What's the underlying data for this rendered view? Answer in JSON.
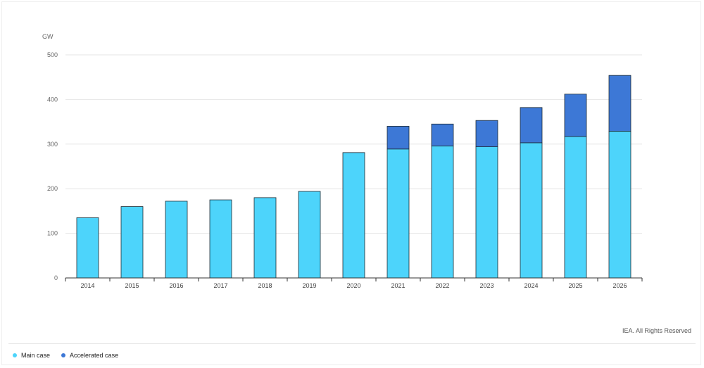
{
  "credit": "IEA. All Rights Reserved",
  "colors": {
    "main": "#4dd4fb",
    "accelerated": "#3d78d6",
    "grid": "#e6e6e6",
    "axis": "#333333"
  },
  "chart_data": {
    "type": "bar",
    "stacked": true,
    "unit_label": "GW",
    "ylim": [
      0,
      500
    ],
    "yticks": [
      0,
      100,
      200,
      300,
      400,
      500
    ],
    "categories": [
      "2014",
      "2015",
      "2016",
      "2017",
      "2018",
      "2019",
      "2020",
      "2021",
      "2022",
      "2023",
      "2024",
      "2025",
      "2026"
    ],
    "series": [
      {
        "name": "Main case",
        "values": [
          135,
          160,
          172,
          175,
          180,
          194,
          281,
          289,
          296,
          294,
          303,
          317,
          329
        ]
      },
      {
        "name": "Accelerated case",
        "values": [
          0,
          0,
          0,
          0,
          0,
          0,
          0,
          51,
          49,
          59,
          79,
          95,
          125
        ]
      }
    ],
    "grid": true,
    "legend": "bottom-left"
  }
}
